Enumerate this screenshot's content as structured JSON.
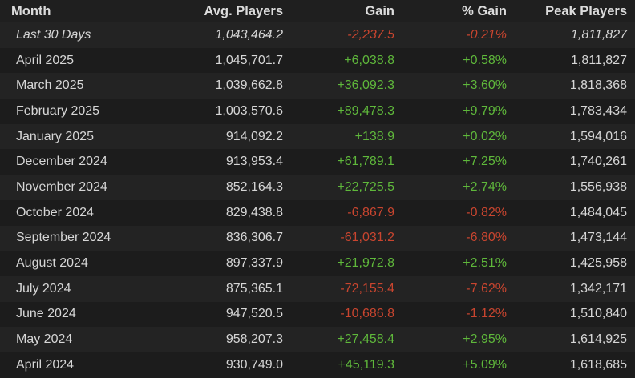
{
  "header": [
    "Month",
    "Avg. Players",
    "Gain",
    "% Gain",
    "Peak Players"
  ],
  "rows": [
    [
      "Last 30 Days",
      "1,043,464.2",
      "-2,237.5",
      "-0.21%",
      "1,811,827"
    ],
    [
      "April 2025",
      "1,045,701.7",
      "+6,038.8",
      "+0.58%",
      "1,811,827"
    ],
    [
      "March 2025",
      "1,039,662.8",
      "+36,092.3",
      "+3.60%",
      "1,818,368"
    ],
    [
      "February 2025",
      "1,003,570.6",
      "+89,478.3",
      "+9.79%",
      "1,783,434"
    ],
    [
      "January 2025",
      "914,092.2",
      "+138.9",
      "+0.02%",
      "1,594,016"
    ],
    [
      "December 2024",
      "913,953.4",
      "+61,789.1",
      "+7.25%",
      "1,740,261"
    ],
    [
      "November 2024",
      "852,164.3",
      "+22,725.5",
      "+2.74%",
      "1,556,938"
    ],
    [
      "October 2024",
      "829,438.8",
      "-6,867.9",
      "-0.82%",
      "1,484,045"
    ],
    [
      "September 2024",
      "836,306.7",
      "-61,031.2",
      "-6.80%",
      "1,473,144"
    ],
    [
      "August 2024",
      "897,337.9",
      "+21,972.8",
      "+2.51%",
      "1,425,958"
    ],
    [
      "July 2024",
      "875,365.1",
      "-72,155.4",
      "-7.62%",
      "1,342,171"
    ],
    [
      "June 2024",
      "947,520.5",
      "-10,686.8",
      "-1.12%",
      "1,510,840"
    ],
    [
      "May 2024",
      "958,207.3",
      "+27,458.4",
      "+2.95%",
      "1,614,925"
    ],
    [
      "April 2024",
      "930,749.0",
      "+45,119.3",
      "+5.09%",
      "1,618,685"
    ]
  ]
}
